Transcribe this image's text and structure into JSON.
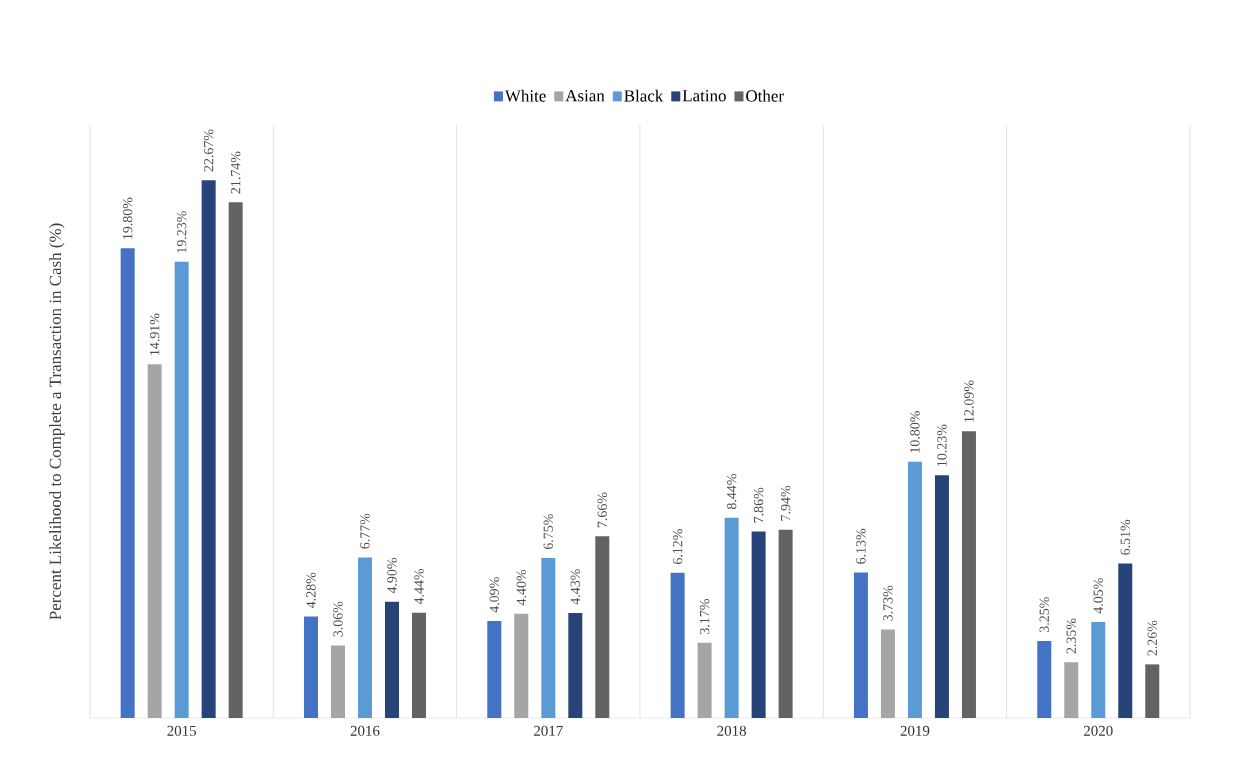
{
  "chart_data": {
    "type": "bar",
    "ylabel": "Percent Likelihood to Complete a Transaction in Cash (%)",
    "categories": [
      "2015",
      "2016",
      "2017",
      "2018",
      "2019",
      "2020"
    ],
    "ylim": [
      0,
      25
    ],
    "tick_labels": "x",
    "grid": "x",
    "legend": "top",
    "series": [
      {
        "name": "White",
        "color": "#4472c4",
        "values": [
          19.8,
          4.28,
          4.09,
          6.12,
          6.13,
          3.25
        ],
        "value_labels": [
          "19.80%",
          "4.28%",
          "4.09%",
          "6.12%",
          "6.13%",
          "3.25%"
        ]
      },
      {
        "name": "Asian",
        "color": "#a5a5a5",
        "values": [
          14.91,
          3.06,
          4.4,
          3.17,
          3.73,
          2.35
        ],
        "value_labels": [
          "14.91%",
          "3.06%",
          "4.40%",
          "3.17%",
          "3.73%",
          "2.35%"
        ]
      },
      {
        "name": "Black",
        "color": "#5b9bd5",
        "values": [
          19.23,
          6.77,
          6.75,
          8.44,
          10.8,
          4.05
        ],
        "value_labels": [
          "19.23%",
          "6.77%",
          "6.75%",
          "8.44%",
          "10.80%",
          "4.05%"
        ]
      },
      {
        "name": "Latino",
        "color": "#264478",
        "values": [
          22.67,
          4.9,
          4.43,
          7.86,
          10.23,
          6.51
        ],
        "value_labels": [
          "22.67%",
          "4.90%",
          "4.43%",
          "7.86%",
          "10.23%",
          "6.51%"
        ]
      },
      {
        "name": "Other",
        "color": "#636363",
        "values": [
          21.74,
          4.44,
          7.66,
          7.94,
          12.09,
          2.26
        ],
        "value_labels": [
          "21.74%",
          "4.44%",
          "7.66%",
          "7.94%",
          "12.09%",
          "2.26%"
        ]
      }
    ]
  }
}
